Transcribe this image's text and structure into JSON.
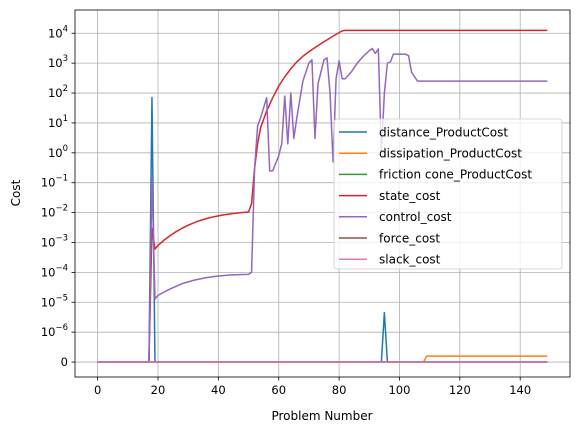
{
  "chart_data": {
    "type": "line",
    "xlabel": "Problem Number",
    "ylabel": "Cost",
    "xlim": [
      -7.5,
      156.5
    ],
    "xticks": [
      0,
      20,
      40,
      60,
      80,
      100,
      120,
      140
    ],
    "xtick_labels": [
      "0",
      "20",
      "40",
      "60",
      "80",
      "100",
      "120",
      "140"
    ],
    "yscale": "symlog",
    "linthresh": 1e-06,
    "ylim": [
      -5e-07,
      60000
    ],
    "yticks": [
      {
        "value": 0,
        "base": "0",
        "exp": ""
      },
      {
        "value": 1e-06,
        "base": "10",
        "exp": "−6"
      },
      {
        "value": 1e-05,
        "base": "10",
        "exp": "−5"
      },
      {
        "value": 0.0001,
        "base": "10",
        "exp": "−4"
      },
      {
        "value": 0.001,
        "base": "10",
        "exp": "−3"
      },
      {
        "value": 0.01,
        "base": "10",
        "exp": "−2"
      },
      {
        "value": 0.1,
        "base": "10",
        "exp": "−1"
      },
      {
        "value": 1,
        "base": "10",
        "exp": "0"
      },
      {
        "value": 10,
        "base": "10",
        "exp": "1"
      },
      {
        "value": 100,
        "base": "10",
        "exp": "2"
      },
      {
        "value": 1000,
        "base": "10",
        "exp": "3"
      },
      {
        "value": 10000,
        "base": "10",
        "exp": "4"
      }
    ],
    "grid": true,
    "legend_loc": "center-right",
    "series": [
      {
        "name": "distance_ProductCost",
        "color": "#1f77b4",
        "points": [
          [
            0,
            0
          ],
          [
            17,
            0
          ],
          [
            18,
            70
          ],
          [
            19,
            0
          ],
          [
            94,
            0
          ],
          [
            95,
            4.5e-06
          ],
          [
            96,
            0
          ],
          [
            149,
            0
          ]
        ]
      },
      {
        "name": "dissipation_ProductCost",
        "color": "#ff7f0e",
        "points": [
          [
            0,
            0
          ],
          [
            108,
            0
          ],
          [
            109,
            2e-07
          ],
          [
            149,
            2e-07
          ]
        ]
      },
      {
        "name": "friction cone_ProductCost",
        "color": "#2ca02c",
        "points": [
          [
            0,
            0
          ],
          [
            149,
            0
          ]
        ]
      },
      {
        "name": "state_cost",
        "color": "#d62728",
        "points": [
          [
            0,
            0
          ],
          [
            17,
            0
          ],
          [
            18,
            0.003
          ],
          [
            19,
            0.0006
          ],
          [
            20,
            0.0008
          ],
          [
            22,
            0.0012
          ],
          [
            24,
            0.0017
          ],
          [
            26,
            0.0023
          ],
          [
            28,
            0.003
          ],
          [
            30,
            0.0038
          ],
          [
            32,
            0.0046
          ],
          [
            34,
            0.0055
          ],
          [
            36,
            0.0063
          ],
          [
            38,
            0.0071
          ],
          [
            40,
            0.0078
          ],
          [
            42,
            0.0085
          ],
          [
            44,
            0.0091
          ],
          [
            46,
            0.0096
          ],
          [
            48,
            0.0101
          ],
          [
            50,
            0.0105
          ],
          [
            51,
            0.02
          ],
          [
            52,
            0.3
          ],
          [
            53,
            2
          ],
          [
            54,
            7
          ],
          [
            56,
            25
          ],
          [
            58,
            70
          ],
          [
            60,
            170
          ],
          [
            62,
            350
          ],
          [
            64,
            650
          ],
          [
            66,
            1100
          ],
          [
            68,
            1700
          ],
          [
            70,
            2400
          ],
          [
            72,
            3300
          ],
          [
            74,
            4500
          ],
          [
            76,
            6000
          ],
          [
            78,
            8000
          ],
          [
            80,
            10500
          ],
          [
            81,
            12000
          ],
          [
            82,
            12500
          ],
          [
            149,
            12500
          ]
        ]
      },
      {
        "name": "control_cost",
        "color": "#9467bd",
        "points": [
          [
            0,
            0
          ],
          [
            17,
            0
          ],
          [
            18,
            0.15
          ],
          [
            19,
            1.3e-05
          ],
          [
            20,
            1.7e-05
          ],
          [
            24,
            2.8e-05
          ],
          [
            28,
            4.2e-05
          ],
          [
            32,
            5.5e-05
          ],
          [
            36,
            6.7e-05
          ],
          [
            40,
            7.6e-05
          ],
          [
            44,
            8.2e-05
          ],
          [
            48,
            8.5e-05
          ],
          [
            50,
            8.6e-05
          ],
          [
            51,
            0.0001
          ],
          [
            52,
            0.3
          ],
          [
            53,
            8
          ],
          [
            54,
            15
          ],
          [
            56,
            70
          ],
          [
            57,
            0.25
          ],
          [
            58,
            0.25
          ],
          [
            60,
            0.8
          ],
          [
            61,
            2
          ],
          [
            62,
            80
          ],
          [
            63,
            2
          ],
          [
            64,
            100
          ],
          [
            65,
            3
          ],
          [
            66,
            15
          ],
          [
            68,
            250
          ],
          [
            70,
            1000
          ],
          [
            71,
            1300
          ],
          [
            72,
            3
          ],
          [
            73,
            200
          ],
          [
            75,
            1300
          ],
          [
            76,
            1500
          ],
          [
            77,
            100
          ],
          [
            78,
            0.5
          ],
          [
            79,
            300
          ],
          [
            80,
            1200
          ],
          [
            81,
            300
          ],
          [
            82,
            300
          ],
          [
            84,
            500
          ],
          [
            86,
            1000
          ],
          [
            88,
            1700
          ],
          [
            90,
            2600
          ],
          [
            91,
            3100
          ],
          [
            92,
            2100
          ],
          [
            93,
            3000
          ],
          [
            94,
            1
          ],
          [
            95,
            100
          ],
          [
            96,
            1000
          ],
          [
            97,
            1100
          ],
          [
            98,
            2000
          ],
          [
            100,
            2000
          ],
          [
            102,
            2000
          ],
          [
            103,
            1800
          ],
          [
            104,
            500
          ],
          [
            105,
            350
          ],
          [
            106,
            250
          ],
          [
            149,
            250
          ]
        ]
      },
      {
        "name": "force_cost",
        "color": "#8c564b",
        "points": [
          [
            0,
            0
          ],
          [
            149,
            0
          ]
        ]
      },
      {
        "name": "slack_cost",
        "color": "#e377c2",
        "points": [
          [
            0,
            0
          ],
          [
            149,
            0
          ]
        ]
      }
    ]
  }
}
